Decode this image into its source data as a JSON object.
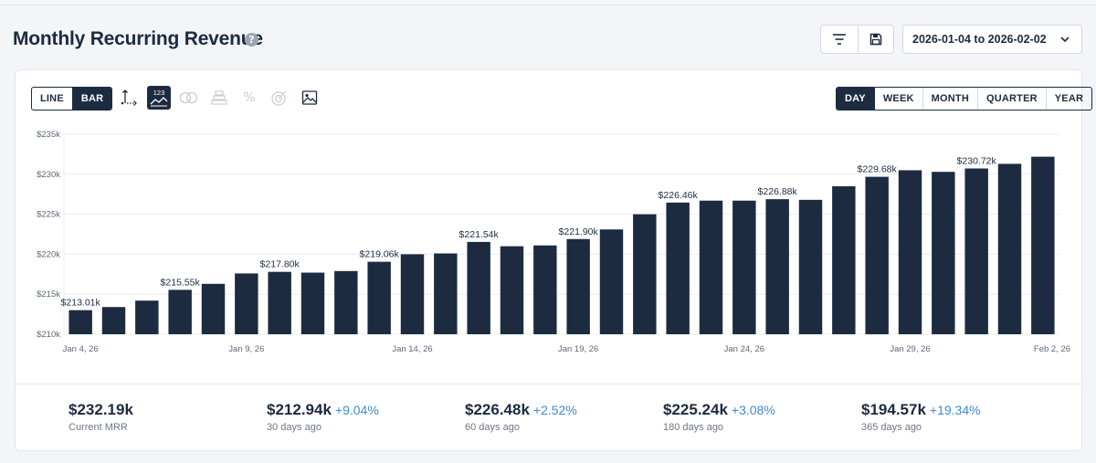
{
  "header": {
    "title": "Monthly Recurring Revenue",
    "help_icon": "?",
    "filter_icon": "filter-icon",
    "save_icon": "save-icon",
    "date_range": "2026-01-04 to 2026-02-02"
  },
  "toolbar": {
    "chart_types": [
      {
        "label": "LINE",
        "active": false
      },
      {
        "label": "BAR",
        "active": true
      }
    ],
    "tools": [
      {
        "name": "axis-icon",
        "active": false
      },
      {
        "name": "data-labels-icon",
        "text": "123",
        "active": true
      },
      {
        "name": "compare-icon",
        "active": false
      },
      {
        "name": "stack-icon",
        "active": false
      },
      {
        "name": "percent-icon",
        "text": "%",
        "active": false
      },
      {
        "name": "goal-icon",
        "active": false
      },
      {
        "name": "image-icon",
        "active": false
      }
    ],
    "periods": [
      {
        "label": "DAY",
        "active": true
      },
      {
        "label": "WEEK",
        "active": false
      },
      {
        "label": "MONTH",
        "active": false
      },
      {
        "label": "QUARTER",
        "active": false
      },
      {
        "label": "YEAR",
        "active": false
      }
    ]
  },
  "colors": {
    "bar": "#1c2b40",
    "grid": "#e9ecf1",
    "accent": "#3d8ad8"
  },
  "chart_data": {
    "type": "bar",
    "title": "Monthly Recurring Revenue",
    "xlabel": "",
    "ylabel": "",
    "ylim": [
      210,
      235
    ],
    "y_unit": "$k",
    "y_ticks": [
      "$210k",
      "$215k",
      "$220k",
      "$225k",
      "$230k",
      "$235k"
    ],
    "y_tick_values": [
      210,
      215,
      220,
      225,
      230,
      235
    ],
    "x_tick_labels": [
      {
        "index": 0,
        "label": "Jan 4, 26"
      },
      {
        "index": 5,
        "label": "Jan 9, 26"
      },
      {
        "index": 10,
        "label": "Jan 14, 26"
      },
      {
        "index": 15,
        "label": "Jan 19, 26"
      },
      {
        "index": 20,
        "label": "Jan 24, 26"
      },
      {
        "index": 25,
        "label": "Jan 29, 26"
      },
      {
        "index": 29,
        "label": "Feb 2, 26"
      }
    ],
    "categories": [
      "Jan 4",
      "Jan 5",
      "Jan 6",
      "Jan 7",
      "Jan 8",
      "Jan 9",
      "Jan 10",
      "Jan 11",
      "Jan 12",
      "Jan 13",
      "Jan 14",
      "Jan 15",
      "Jan 16",
      "Jan 17",
      "Jan 18",
      "Jan 19",
      "Jan 20",
      "Jan 21",
      "Jan 22",
      "Jan 23",
      "Jan 24",
      "Jan 25",
      "Jan 26",
      "Jan 27",
      "Jan 28",
      "Jan 29",
      "Jan 30",
      "Jan 31",
      "Feb 1",
      "Feb 2"
    ],
    "values": [
      213.01,
      213.4,
      214.2,
      215.55,
      216.3,
      217.6,
      217.8,
      217.7,
      217.9,
      219.06,
      220.0,
      220.1,
      221.54,
      221.0,
      221.1,
      221.9,
      223.1,
      225.0,
      226.46,
      226.7,
      226.7,
      226.88,
      226.8,
      228.5,
      229.68,
      230.5,
      230.3,
      230.72,
      231.3,
      232.19
    ],
    "data_labels": [
      {
        "index": 0,
        "label": "$213.01k"
      },
      {
        "index": 3,
        "label": "$215.55k"
      },
      {
        "index": 6,
        "label": "$217.80k"
      },
      {
        "index": 9,
        "label": "$219.06k"
      },
      {
        "index": 12,
        "label": "$221.54k"
      },
      {
        "index": 15,
        "label": "$221.90k"
      },
      {
        "index": 18,
        "label": "$226.46k"
      },
      {
        "index": 21,
        "label": "$226.88k"
      },
      {
        "index": 24,
        "label": "$229.68k"
      },
      {
        "index": 27,
        "label": "$230.72k"
      }
    ]
  },
  "stats": [
    {
      "value": "$232.19k",
      "change": "",
      "label": "Current MRR"
    },
    {
      "value": "$212.94k",
      "change": "+9.04%",
      "label": "30 days ago"
    },
    {
      "value": "$226.48k",
      "change": "+2.52%",
      "label": "60 days ago"
    },
    {
      "value": "$225.24k",
      "change": "+3.08%",
      "label": "180 days ago"
    },
    {
      "value": "$194.57k",
      "change": "+19.34%",
      "label": "365 days ago"
    }
  ]
}
